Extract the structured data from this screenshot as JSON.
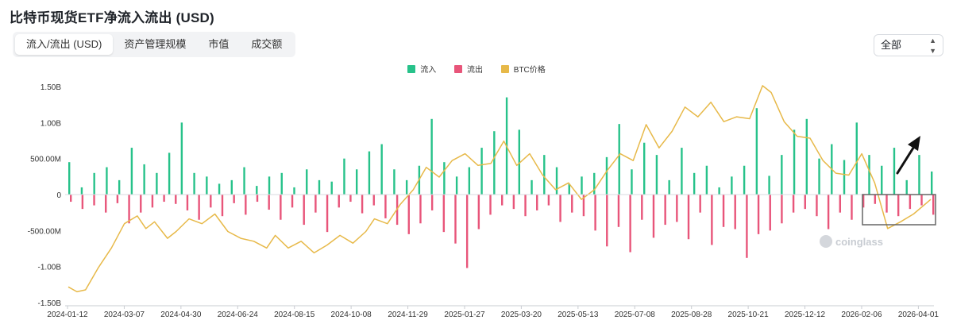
{
  "header": {
    "title": "比特币现货ETF净流入流出 (USD)",
    "tabs": [
      {
        "label": "流入/流出 (USD)",
        "active": true
      },
      {
        "label": "资产管理规模",
        "active": false
      },
      {
        "label": "市值",
        "active": false
      },
      {
        "label": "成交额",
        "active": false
      }
    ],
    "range_select": {
      "value": "全部"
    }
  },
  "watermark": "coinglass",
  "colors": {
    "inflow": "#27c28a",
    "outflow": "#e8557a",
    "price": "#e7b949",
    "highlight_box": "#666666",
    "arrow": "#111111"
  },
  "chart_data": {
    "type": "bar",
    "title": "比特币现货ETF净流入流出 (USD)",
    "xlabel": "",
    "ylabel": "",
    "ylim": [
      -1500000000,
      1500000000
    ],
    "y_ticks": [
      {
        "value": 1500000000,
        "label": "1.50B"
      },
      {
        "value": 1000000000,
        "label": "1.00B"
      },
      {
        "value": 500000000,
        "label": "500.00M"
      },
      {
        "value": 0,
        "label": "0"
      },
      {
        "value": -500000000,
        "label": "-500.00M"
      },
      {
        "value": -1000000000,
        "label": "-1.00B"
      },
      {
        "value": -1500000000,
        "label": "-1.50B"
      }
    ],
    "x_ticks": [
      "2024-01-12",
      "2024-03-07",
      "2024-04-30",
      "2024-06-24",
      "2024-08-15",
      "2024-10-08",
      "2024-11-29",
      "2025-01-27",
      "2025-03-20",
      "2025-05-13",
      "2025-07-08",
      "2025-08-28",
      "2025-10-21",
      "2025-12-12",
      "2026-02-06",
      "2026-04-01"
    ],
    "legend": {
      "position": "top-center",
      "entries": [
        "流入",
        "流出",
        "BTC价格"
      ]
    },
    "grid": false,
    "series": [
      {
        "name": "流入",
        "kind": "bar",
        "values_musd": [
          450,
          100,
          300,
          380,
          200,
          650,
          420,
          300,
          580,
          1000,
          300,
          250,
          150,
          200,
          380,
          120,
          250,
          300,
          100,
          350,
          200,
          180,
          500,
          350,
          600,
          700,
          350,
          200,
          400,
          1050,
          450,
          250,
          380,
          650,
          880,
          1350,
          900,
          200,
          550,
          380,
          150,
          250,
          300,
          520,
          980,
          350,
          720,
          550,
          200,
          650,
          300,
          400,
          100,
          250,
          400,
          1200,
          260,
          550,
          900,
          1050,
          500,
          700,
          480,
          1000,
          550,
          400,
          650,
          200,
          550,
          320
        ]
      },
      {
        "name": "流出",
        "kind": "bar",
        "values_musd": [
          -100,
          -200,
          -150,
          -250,
          -120,
          -400,
          -250,
          -180,
          -100,
          -130,
          -220,
          -350,
          -180,
          -300,
          -120,
          -280,
          -100,
          -210,
          -350,
          -180,
          -420,
          -250,
          -520,
          -180,
          -100,
          -260,
          -150,
          -330,
          -420,
          -550,
          -400,
          -220,
          -520,
          -680,
          -1020,
          -480,
          -280,
          -150,
          -200,
          -300,
          -220,
          -150,
          -380,
          -250,
          -300,
          -500,
          -720,
          -450,
          -800,
          -350,
          -600,
          -420,
          -380,
          -620,
          -250,
          -700,
          -450,
          -480,
          -880,
          -550,
          -500,
          -400,
          -250,
          -200,
          -300,
          -480,
          -250,
          -350,
          -180,
          -130,
          -250,
          -300,
          -200,
          -150,
          -280
        ]
      },
      {
        "name": "BTC价格",
        "kind": "line",
        "axis": "secondary",
        "points": [
          [
            0,
            -0.95
          ],
          [
            0.01,
            -1.0
          ],
          [
            0.02,
            -0.98
          ],
          [
            0.035,
            -0.75
          ],
          [
            0.05,
            -0.55
          ],
          [
            0.065,
            -0.3
          ],
          [
            0.08,
            -0.22
          ],
          [
            0.09,
            -0.35
          ],
          [
            0.1,
            -0.28
          ],
          [
            0.115,
            -0.45
          ],
          [
            0.125,
            -0.38
          ],
          [
            0.14,
            -0.25
          ],
          [
            0.155,
            -0.3
          ],
          [
            0.17,
            -0.2
          ],
          [
            0.185,
            -0.38
          ],
          [
            0.2,
            -0.45
          ],
          [
            0.215,
            -0.48
          ],
          [
            0.23,
            -0.55
          ],
          [
            0.24,
            -0.42
          ],
          [
            0.255,
            -0.55
          ],
          [
            0.27,
            -0.48
          ],
          [
            0.285,
            -0.6
          ],
          [
            0.3,
            -0.52
          ],
          [
            0.315,
            -0.42
          ],
          [
            0.33,
            -0.5
          ],
          [
            0.345,
            -0.38
          ],
          [
            0.355,
            -0.25
          ],
          [
            0.37,
            -0.3
          ],
          [
            0.385,
            -0.1
          ],
          [
            0.4,
            0.05
          ],
          [
            0.415,
            0.28
          ],
          [
            0.43,
            0.18
          ],
          [
            0.445,
            0.35
          ],
          [
            0.46,
            0.42
          ],
          [
            0.475,
            0.3
          ],
          [
            0.49,
            0.32
          ],
          [
            0.505,
            0.55
          ],
          [
            0.52,
            0.3
          ],
          [
            0.535,
            0.42
          ],
          [
            0.55,
            0.2
          ],
          [
            0.565,
            0.05
          ],
          [
            0.58,
            0.12
          ],
          [
            0.595,
            -0.05
          ],
          [
            0.61,
            0.05
          ],
          [
            0.625,
            0.25
          ],
          [
            0.64,
            0.42
          ],
          [
            0.655,
            0.35
          ],
          [
            0.67,
            0.72
          ],
          [
            0.685,
            0.48
          ],
          [
            0.7,
            0.65
          ],
          [
            0.715,
            0.9
          ],
          [
            0.73,
            0.8
          ],
          [
            0.745,
            0.95
          ],
          [
            0.76,
            0.75
          ],
          [
            0.775,
            0.8
          ],
          [
            0.79,
            0.78
          ],
          [
            0.805,
            1.12
          ],
          [
            0.815,
            1.05
          ],
          [
            0.83,
            0.75
          ],
          [
            0.845,
            0.6
          ],
          [
            0.86,
            0.58
          ],
          [
            0.875,
            0.35
          ],
          [
            0.89,
            0.22
          ],
          [
            0.905,
            0.2
          ],
          [
            0.92,
            0.42
          ],
          [
            0.935,
            0.12
          ],
          [
            0.95,
            -0.35
          ],
          [
            0.965,
            -0.28
          ],
          [
            0.98,
            -0.2
          ],
          [
            1.0,
            -0.05
          ]
        ]
      }
    ],
    "annotations": [
      {
        "type": "rectangle",
        "label": ""
      },
      {
        "type": "arrow",
        "direction": "up-right",
        "label": ""
      }
    ]
  }
}
